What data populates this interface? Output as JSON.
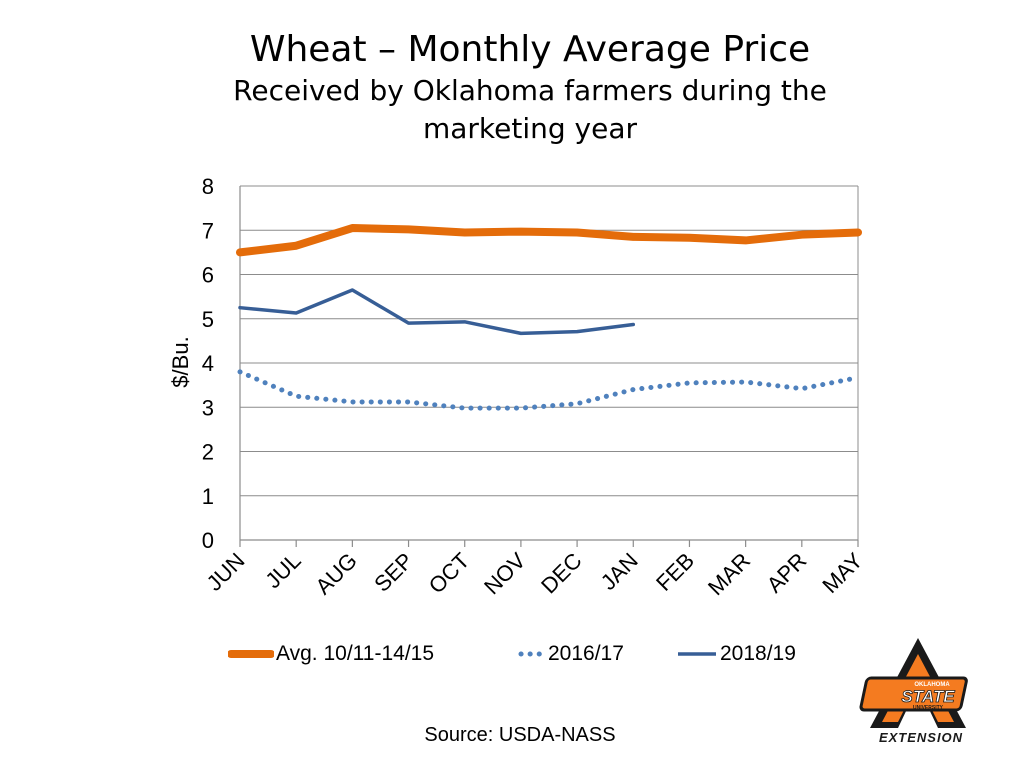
{
  "chart_data": {
    "type": "line",
    "title": "Wheat – Monthly Average Price",
    "subtitle": "Received by Oklahoma farmers during the marketing year",
    "xlabel": "",
    "ylabel": "$/Bu.",
    "ylim": [
      0,
      8
    ],
    "yticks": [
      "0",
      "1",
      "2",
      "3",
      "4",
      "5",
      "6",
      "7",
      "8"
    ],
    "categories": [
      "JUN",
      "JUL",
      "AUG",
      "SEP",
      "OCT",
      "NOV",
      "DEC",
      "JAN",
      "FEB",
      "MAR",
      "APR",
      "MAY"
    ],
    "grid": "horizontal",
    "legend_position": "bottom",
    "series": [
      {
        "name": "Avg. 10/11-14/15",
        "color": "#E46C0A",
        "style": "solid-thick",
        "values": [
          6.5,
          6.65,
          7.05,
          7.02,
          6.95,
          6.97,
          6.95,
          6.85,
          6.83,
          6.77,
          6.9,
          6.95
        ]
      },
      {
        "name": "2016/17",
        "color": "#4F81BD",
        "style": "dotted",
        "values": [
          3.8,
          3.25,
          3.12,
          3.12,
          2.98,
          2.98,
          3.08,
          3.4,
          3.55,
          3.57,
          3.42,
          3.67
        ]
      },
      {
        "name": "2018/19",
        "color": "#375E96",
        "style": "solid",
        "values": [
          5.25,
          5.13,
          5.65,
          4.9,
          4.93,
          4.67,
          4.71,
          4.87,
          null,
          null,
          null,
          null
        ]
      }
    ]
  },
  "footer": {
    "source": "Source:  USDA-NASS"
  },
  "logo": {
    "line1": "OKLAHOMA",
    "line2": "STATE",
    "line3": "UNIVERSITY",
    "line4": "EXTENSION",
    "black": "#1a1a1a",
    "orange": "#F47B20"
  }
}
